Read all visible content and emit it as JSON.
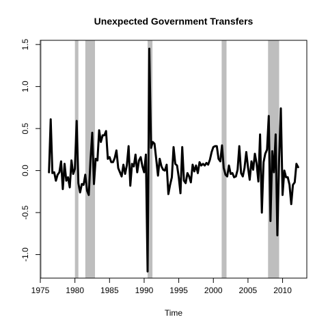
{
  "chart_data": {
    "type": "line",
    "title": "Unexpected Government Transfers",
    "xlabel": "Time",
    "ylabel": "",
    "xlim": [
      1975.0,
      2013.5
    ],
    "ylim": [
      -1.28,
      1.55
    ],
    "xticks": [
      1975,
      1980,
      1985,
      1990,
      1995,
      2000,
      2005,
      2010
    ],
    "yticks": [
      -1.0,
      -0.5,
      0.0,
      0.5,
      1.0,
      1.5
    ],
    "ytick_labels": [
      "-1.0",
      "-0.5",
      "0.0",
      "0.5",
      "1.0",
      "1.5"
    ],
    "grid": false,
    "legend": "none",
    "line_color": "#000000",
    "recession_color": "#bebebe",
    "recessions": [
      {
        "start": 1973.9,
        "end": 1975.2
      },
      {
        "start": 1980.0,
        "end": 1980.5
      },
      {
        "start": 1981.5,
        "end": 1982.9
      },
      {
        "start": 1990.5,
        "end": 1991.2
      },
      {
        "start": 2001.2,
        "end": 2001.9
      },
      {
        "start": 2007.9,
        "end": 2009.5
      }
    ],
    "series": [
      {
        "start": 1976.25,
        "step": 0.25,
        "values": [
          -0.02,
          0.61,
          -0.03,
          -0.02,
          -0.12,
          -0.05,
          -0.02,
          0.11,
          -0.22,
          0.08,
          -0.12,
          -0.08,
          -0.2,
          0.12,
          -0.04,
          0.02,
          0.59,
          -0.15,
          -0.26,
          -0.16,
          -0.17,
          -0.05,
          -0.24,
          -0.29,
          0.12,
          0.45,
          -0.16,
          0.14,
          0.12,
          0.48,
          0.34,
          0.42,
          0.42,
          0.47,
          0.14,
          0.16,
          0.1,
          0.1,
          0.15,
          0.24,
          0.03,
          -0.02,
          -0.07,
          0.07,
          -0.04,
          0.06,
          0.29,
          -0.18,
          0.08,
          0.05,
          0.19,
          -0.02,
          0.12,
          0.16,
          0.05,
          -0.02,
          0.19,
          -1.2,
          1.45,
          0.27,
          0.34,
          0.32,
          0.13,
          -0.06,
          0.14,
          0.05,
          0.01,
          0.0,
          0.07,
          -0.28,
          -0.17,
          -0.08,
          0.28,
          0.08,
          0.06,
          -0.08,
          -0.27,
          0.28,
          -0.12,
          -0.15,
          -0.03,
          -0.07,
          -0.14,
          0.07,
          -0.01,
          0.06,
          -0.03,
          0.1,
          0.06,
          0.08,
          0.06,
          0.09,
          0.07,
          0.13,
          0.22,
          0.28,
          0.29,
          0.29,
          0.14,
          0.11,
          0.3,
          0.03,
          -0.05,
          -0.07,
          0.06,
          -0.04,
          -0.03,
          -0.08,
          -0.07,
          0.01,
          0.29,
          -0.03,
          -0.07,
          0.03,
          0.22,
          0.04,
          -0.11,
          0.11,
          0.01,
          0.2,
          0.08,
          -0.13,
          0.43,
          -0.5,
          0.1,
          0.2,
          0.25,
          0.65,
          -0.6,
          0.23,
          -0.02,
          0.43,
          -0.77,
          0.14,
          0.74,
          -0.29,
          0.0,
          -0.08,
          -0.08,
          -0.17,
          -0.4,
          -0.17,
          -0.14,
          0.08,
          0.04
        ]
      }
    ]
  }
}
